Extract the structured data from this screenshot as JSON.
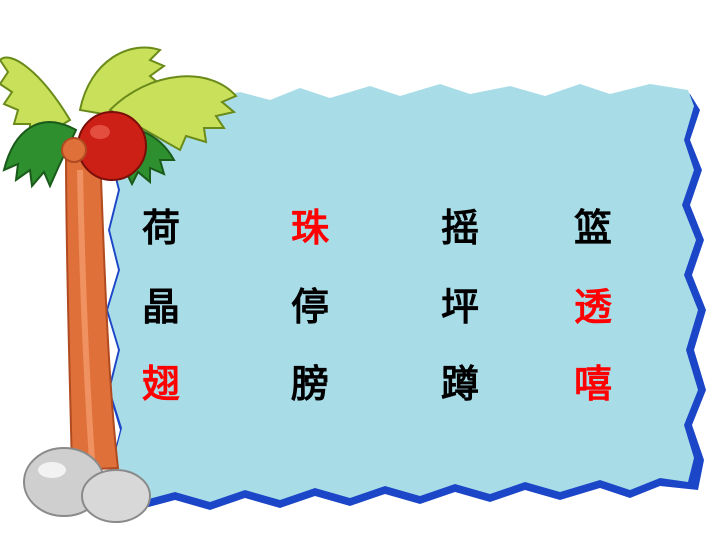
{
  "colors": {
    "board_fill": "#a8dde8",
    "board_border": "#1c46c8",
    "trunk": "#e0703a",
    "coconut": "#cc1f16",
    "leaf_light": "#c8e05a",
    "leaf_dark": "#2e8f2e",
    "stone": "#cfcfcf",
    "text_normal": "#000000",
    "text_highlight": "#ff0000"
  },
  "characters": [
    {
      "text": "荷",
      "color": "#000000"
    },
    {
      "text": "珠",
      "color": "#ff0000"
    },
    {
      "text": "摇",
      "color": "#000000"
    },
    {
      "text": "篮",
      "color": "#000000"
    },
    {
      "text": "晶",
      "color": "#000000"
    },
    {
      "text": "停",
      "color": "#000000"
    },
    {
      "text": "坪",
      "color": "#000000"
    },
    {
      "text": "透",
      "color": "#ff0000"
    },
    {
      "text": "翅",
      "color": "#ff0000"
    },
    {
      "text": "膀",
      "color": "#000000"
    },
    {
      "text": "蹲",
      "color": "#000000"
    },
    {
      "text": "嘻",
      "color": "#ff0000"
    }
  ]
}
